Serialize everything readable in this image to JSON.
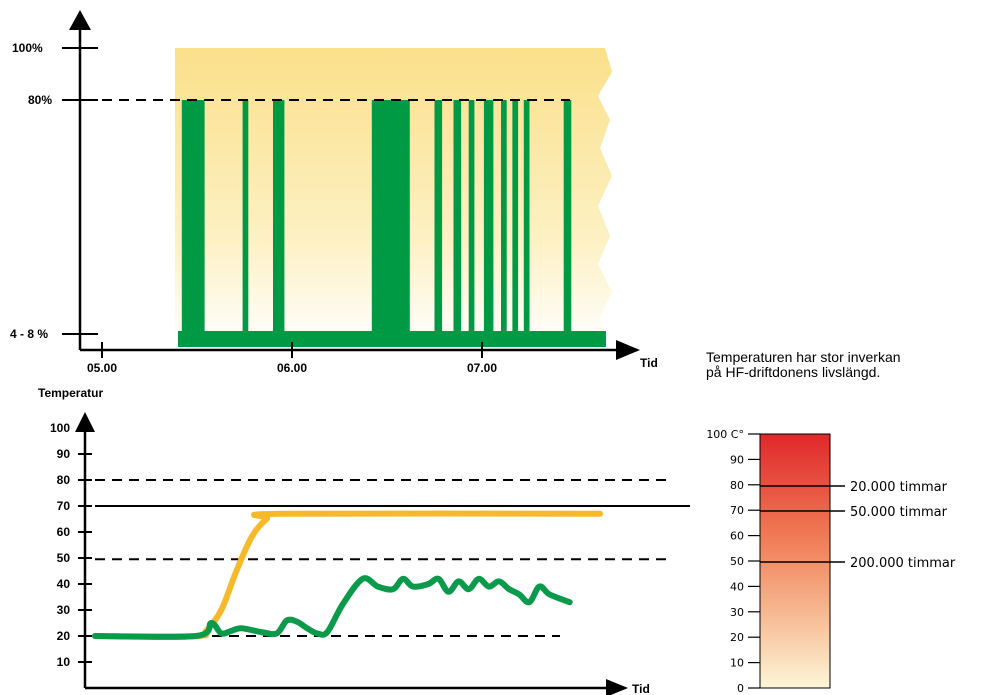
{
  "chart_data": [
    {
      "type": "area",
      "ylabels": [
        "100%",
        "80%",
        "4 - 8 %"
      ],
      "xticks": [
        "05.00",
        "06.00",
        "07.00"
      ],
      "xlabel": "Tid",
      "series": [
        {
          "color": "#009944",
          "active_intervals": [
            [
              5.42,
              5.54
            ],
            [
              5.74,
              5.77
            ],
            [
              5.9,
              5.96
            ],
            [
              6.42,
              6.62
            ],
            [
              6.75,
              6.79
            ],
            [
              6.85,
              6.89
            ],
            [
              6.93,
              6.96
            ],
            [
              7.01,
              7.06
            ],
            [
              7.1,
              7.13
            ],
            [
              7.16,
              7.19
            ],
            [
              7.22,
              7.25
            ],
            [
              7.43,
              7.47
            ]
          ],
          "high_level": 80,
          "low_level": 6
        }
      ],
      "background_color": "#fbe08a"
    },
    {
      "type": "line",
      "ylabel": "Temperatur",
      "xlabel": "Tid",
      "ylim": [
        0,
        100
      ],
      "yticks": [
        10,
        20,
        30,
        40,
        50,
        60,
        70,
        80,
        90,
        100
      ],
      "reference_lines": [
        {
          "y": 80,
          "style": "dashed"
        },
        {
          "y": 70,
          "style": "solid"
        },
        {
          "y": 49.5,
          "style": "dashed"
        },
        {
          "y": 20,
          "style": "dashed"
        }
      ],
      "series": [
        {
          "color": "#f6b92a",
          "points": [
            [
              0,
              20
            ],
            [
              20,
              20
            ],
            [
              22,
              22
            ],
            [
              25,
              30
            ],
            [
              28,
              45
            ],
            [
              31,
              58
            ],
            [
              34,
              65
            ],
            [
              37,
              67
            ],
            [
              100,
              67
            ]
          ]
        },
        {
          "color": "#0b9a4b",
          "points": [
            [
              0,
              20
            ],
            [
              20,
              20
            ],
            [
              23,
              25
            ],
            [
              25,
              21
            ],
            [
              27,
              22
            ],
            [
              29,
              23
            ],
            [
              33,
              21.5
            ],
            [
              36,
              21
            ],
            [
              38,
              26
            ],
            [
              40,
              25.5
            ],
            [
              42,
              23
            ],
            [
              44,
              21
            ],
            [
              46,
              21.5
            ],
            [
              49,
              32
            ],
            [
              53,
              42
            ],
            [
              56,
              39
            ],
            [
              59,
              38
            ],
            [
              61,
              42
            ],
            [
              63,
              39
            ],
            [
              66,
              40
            ],
            [
              68,
              42
            ],
            [
              70,
              37
            ],
            [
              72,
              41
            ],
            [
              74,
              38
            ],
            [
              76,
              42
            ],
            [
              78,
              39
            ],
            [
              80,
              41
            ],
            [
              82,
              38
            ],
            [
              84,
              36
            ],
            [
              86,
              33
            ],
            [
              88,
              39
            ],
            [
              90,
              36
            ],
            [
              94,
              33
            ]
          ]
        }
      ]
    },
    {
      "type": "bar",
      "yticks": [
        "100 C°",
        "90",
        "80",
        "70",
        "60",
        "50",
        "40",
        "30",
        "20",
        "10",
        "0"
      ],
      "annotations": [
        {
          "at": 80,
          "text": "20.000 timmar"
        },
        {
          "at": 70,
          "text": "50.000 timmar"
        },
        {
          "at": 50,
          "text": "200.000 timmar"
        }
      ],
      "gradient_colors": [
        "#e0282b",
        "#f07a55",
        "#f6b890",
        "#fdf6d8"
      ]
    }
  ],
  "note": "Temperaturen har stor inverkan på HF-driftdonens livslängd."
}
